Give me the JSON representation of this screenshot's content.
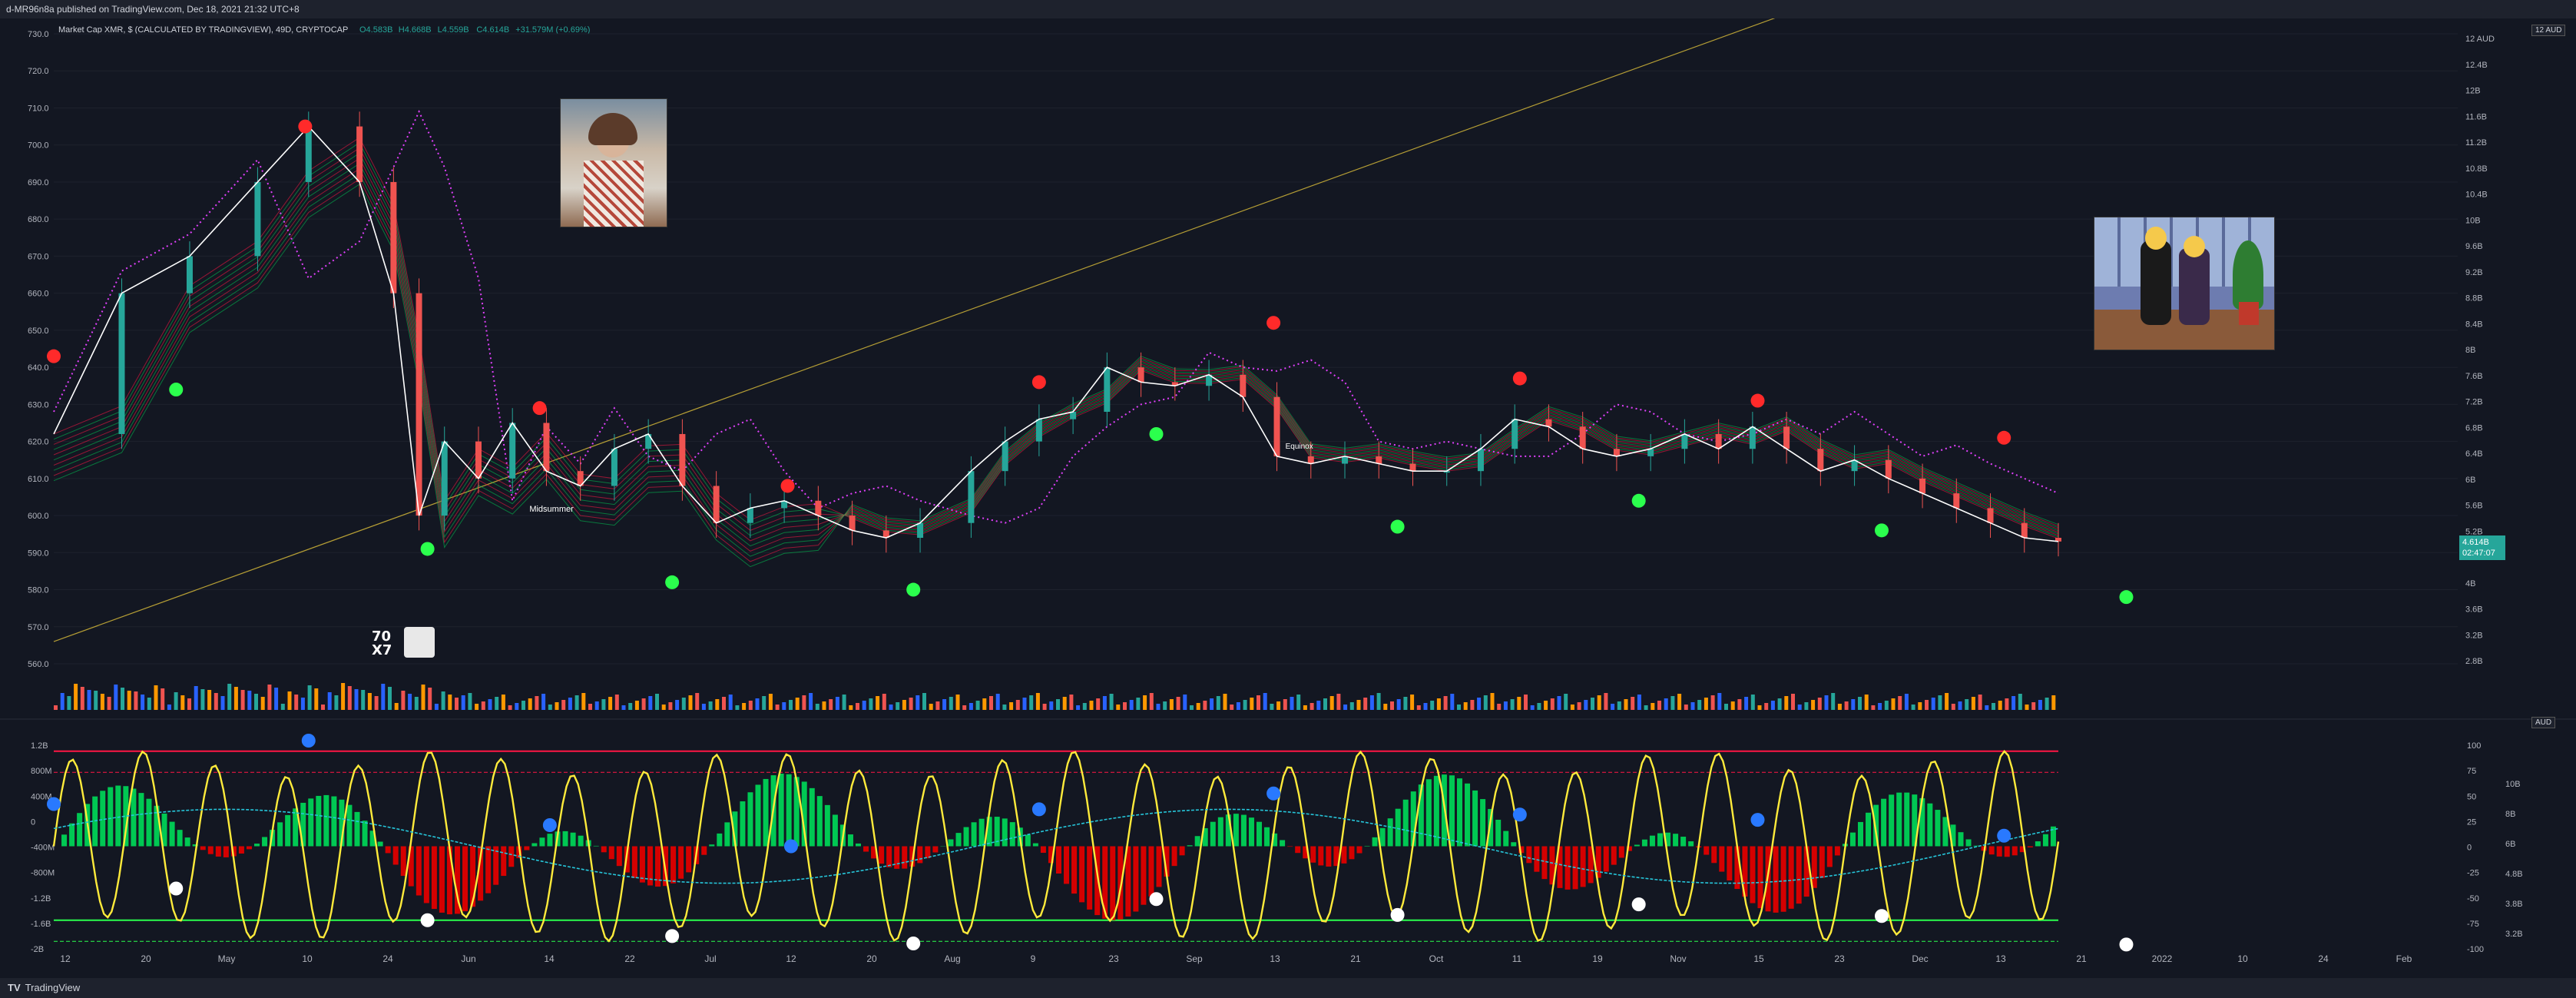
{
  "topbar_text": "d-MR96n8a published on TradingView.com, Dec 18, 2021 21:32 UTC+8",
  "bottombar_text": "TradingView",
  "legend": {
    "title": "Market Cap XMR, $ (CALCULATED BY TRADINGVIEW), 49D, CRYPTOCAP",
    "o": "O4.583B",
    "h": "H4.668B",
    "l": "L4.559B",
    "c": "C4.614B",
    "chg": "+31.579M (+0.69%)"
  },
  "price_badge": [
    "4.614B",
    "02:47:07"
  ],
  "currency_label": "12 AUD",
  "osc_currency_label": "AUD",
  "annotations": {
    "midsummer": "Midsummer",
    "equinox": "Equinox",
    "logo_text": "70X7"
  },
  "colors": {
    "bg": "#131722",
    "grid": "#1e222d",
    "up": "#26a69a",
    "down": "#ef5350",
    "green_ribbon": "#00c853",
    "red_ribbon": "#ff1744",
    "pink_dots": "#e040fb",
    "yellow_line": "#ffeb3b",
    "cyan_line": "#26c6da",
    "trendline": "#b59e35"
  },
  "chart_data": [
    {
      "type": "line",
      "title": "Market Cap XMR, $ (CALCULATED BY TRADINGVIEW), 49D, CRYPTOCAP",
      "ylabel_left_ticks": [
        730.0,
        720.0,
        710.0,
        700.0,
        690.0,
        680.0,
        670.0,
        660.0,
        650.0,
        640.0,
        630.0,
        620.0,
        610.0,
        600.0,
        590.0,
        580.0,
        570.0,
        560.0
      ],
      "ylabel_right_ticks": [
        "12 AUD",
        "12.4B",
        "12B",
        "11.6B",
        "11.2B",
        "10.8B",
        "10.4B",
        "10B",
        "9.6B",
        "9.2B",
        "8.8B",
        "8.4B",
        "8B",
        "7.6B",
        "7.2B",
        "6.8B",
        "6.4B",
        "6B",
        "5.6B",
        "5.2B",
        "4.8B",
        "4B",
        "3.6B",
        "3.2B",
        "2.8B"
      ],
      "x_ticks": [
        "12",
        "20",
        "May",
        "10",
        "24",
        "Jun",
        "14",
        "22",
        "Jul",
        "12",
        "20",
        "Aug",
        "9",
        "23",
        "Sep",
        "13",
        "21",
        "Oct",
        "11",
        "19",
        "Nov",
        "15",
        "23",
        "Dec",
        "13",
        "21",
        "2022",
        "10",
        "24",
        "Feb"
      ],
      "series": [
        {
          "name": "Market Cap XMR",
          "points": [
            [
              0,
              622
            ],
            [
              40,
              660
            ],
            [
              80,
              670
            ],
            [
              120,
              690
            ],
            [
              150,
              705
            ],
            [
              180,
              690
            ],
            [
              200,
              660
            ],
            [
              215,
              600
            ],
            [
              230,
              620
            ],
            [
              250,
              610
            ],
            [
              270,
              625
            ],
            [
              290,
              612
            ],
            [
              310,
              608
            ],
            [
              330,
              618
            ],
            [
              350,
              622
            ],
            [
              370,
              608
            ],
            [
              390,
              598
            ],
            [
              410,
              602
            ],
            [
              430,
              604
            ],
            [
              450,
              600
            ],
            [
              470,
              596
            ],
            [
              490,
              594
            ],
            [
              510,
              598
            ],
            [
              540,
              612
            ],
            [
              560,
              620
            ],
            [
              580,
              626
            ],
            [
              600,
              628
            ],
            [
              620,
              640
            ],
            [
              640,
              636
            ],
            [
              660,
              635
            ],
            [
              680,
              638
            ],
            [
              700,
              632
            ],
            [
              720,
              616
            ],
            [
              740,
              614
            ],
            [
              760,
              616
            ],
            [
              780,
              614
            ],
            [
              800,
              612
            ],
            [
              820,
              612
            ],
            [
              840,
              618
            ],
            [
              860,
              626
            ],
            [
              880,
              624
            ],
            [
              900,
              618
            ],
            [
              920,
              616
            ],
            [
              940,
              618
            ],
            [
              960,
              622
            ],
            [
              980,
              618
            ],
            [
              1000,
              624
            ],
            [
              1020,
              618
            ],
            [
              1040,
              612
            ],
            [
              1060,
              615
            ],
            [
              1080,
              610
            ],
            [
              1100,
              606
            ],
            [
              1120,
              602
            ],
            [
              1140,
              598
            ],
            [
              1160,
              594
            ],
            [
              1180,
              593
            ]
          ]
        }
      ],
      "markers_red": [
        [
          0,
          643
        ],
        [
          148,
          705
        ],
        [
          286,
          629
        ],
        [
          432,
          608
        ],
        [
          580,
          636
        ],
        [
          718,
          652
        ],
        [
          863,
          637
        ],
        [
          1003,
          631
        ],
        [
          1148,
          621
        ]
      ],
      "markers_green": [
        [
          72,
          634
        ],
        [
          220,
          591
        ],
        [
          364,
          582
        ],
        [
          506,
          580
        ],
        [
          649,
          622
        ],
        [
          791,
          597
        ],
        [
          933,
          604
        ],
        [
          1076,
          596
        ],
        [
          1220,
          578
        ]
      ]
    },
    {
      "type": "line",
      "title": "",
      "y_ticks_left": [
        "1.2B",
        "800M",
        "400M",
        "0",
        "-400M",
        "-800M",
        "-1.2B",
        "-1.6B",
        "-2B"
      ],
      "y_ticks_right": [
        "100",
        "75",
        "50",
        "25",
        "0",
        "-25",
        "-50",
        "-75",
        "-100"
      ],
      "y_ticks_right2": [
        "10B",
        "8B",
        "6B",
        "4.8B",
        "3.8B",
        "3.2B"
      ]
    }
  ]
}
